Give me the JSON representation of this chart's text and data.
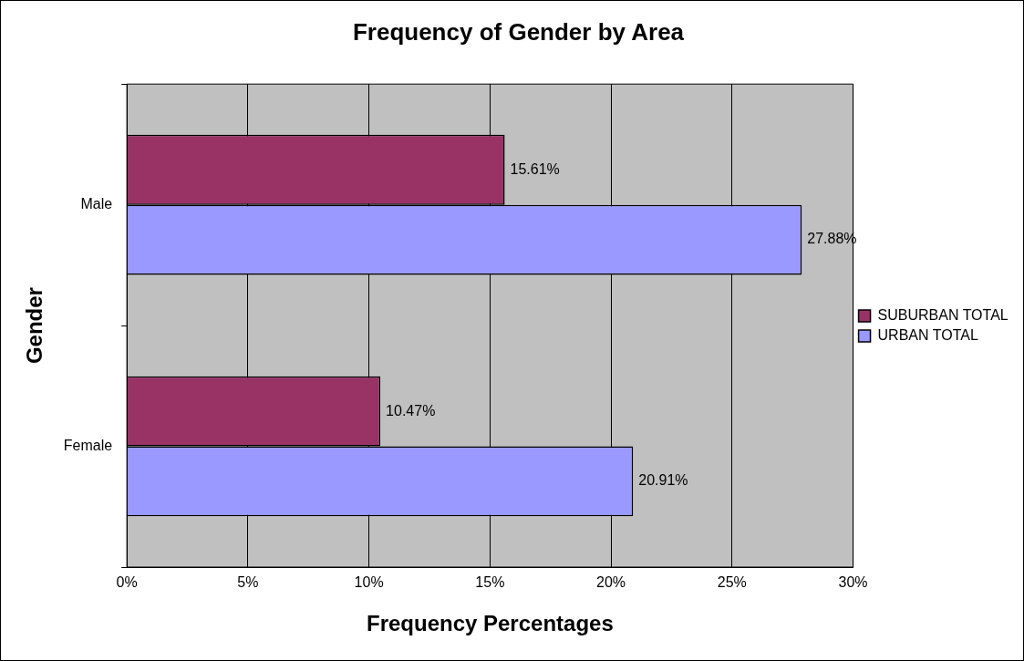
{
  "chart_data": {
    "type": "bar",
    "orientation": "horizontal",
    "title": "Frequency of Gender by Area",
    "xlabel": "Frequency Percentages",
    "ylabel": "Gender",
    "categories": [
      "Male",
      "Female"
    ],
    "series": [
      {
        "name": "SUBURBAN TOTAL",
        "color": "#993366",
        "values": [
          15.61,
          10.47
        ],
        "value_labels": [
          "15.61%",
          "10.47%"
        ]
      },
      {
        "name": "URBAN TOTAL",
        "color": "#9999ff",
        "values": [
          27.88,
          20.91
        ],
        "value_labels": [
          "27.88%",
          "20.91%"
        ]
      }
    ],
    "xlim": [
      0,
      30
    ],
    "xticks": [
      {
        "value": 0,
        "label": "0%"
      },
      {
        "value": 5,
        "label": "5%"
      },
      {
        "value": 10,
        "label": "10%"
      },
      {
        "value": 15,
        "label": "15%"
      },
      {
        "value": 20,
        "label": "20%"
      },
      {
        "value": 25,
        "label": "25%"
      },
      {
        "value": 30,
        "label": "30%"
      }
    ],
    "grid": "x",
    "legend": "right"
  }
}
